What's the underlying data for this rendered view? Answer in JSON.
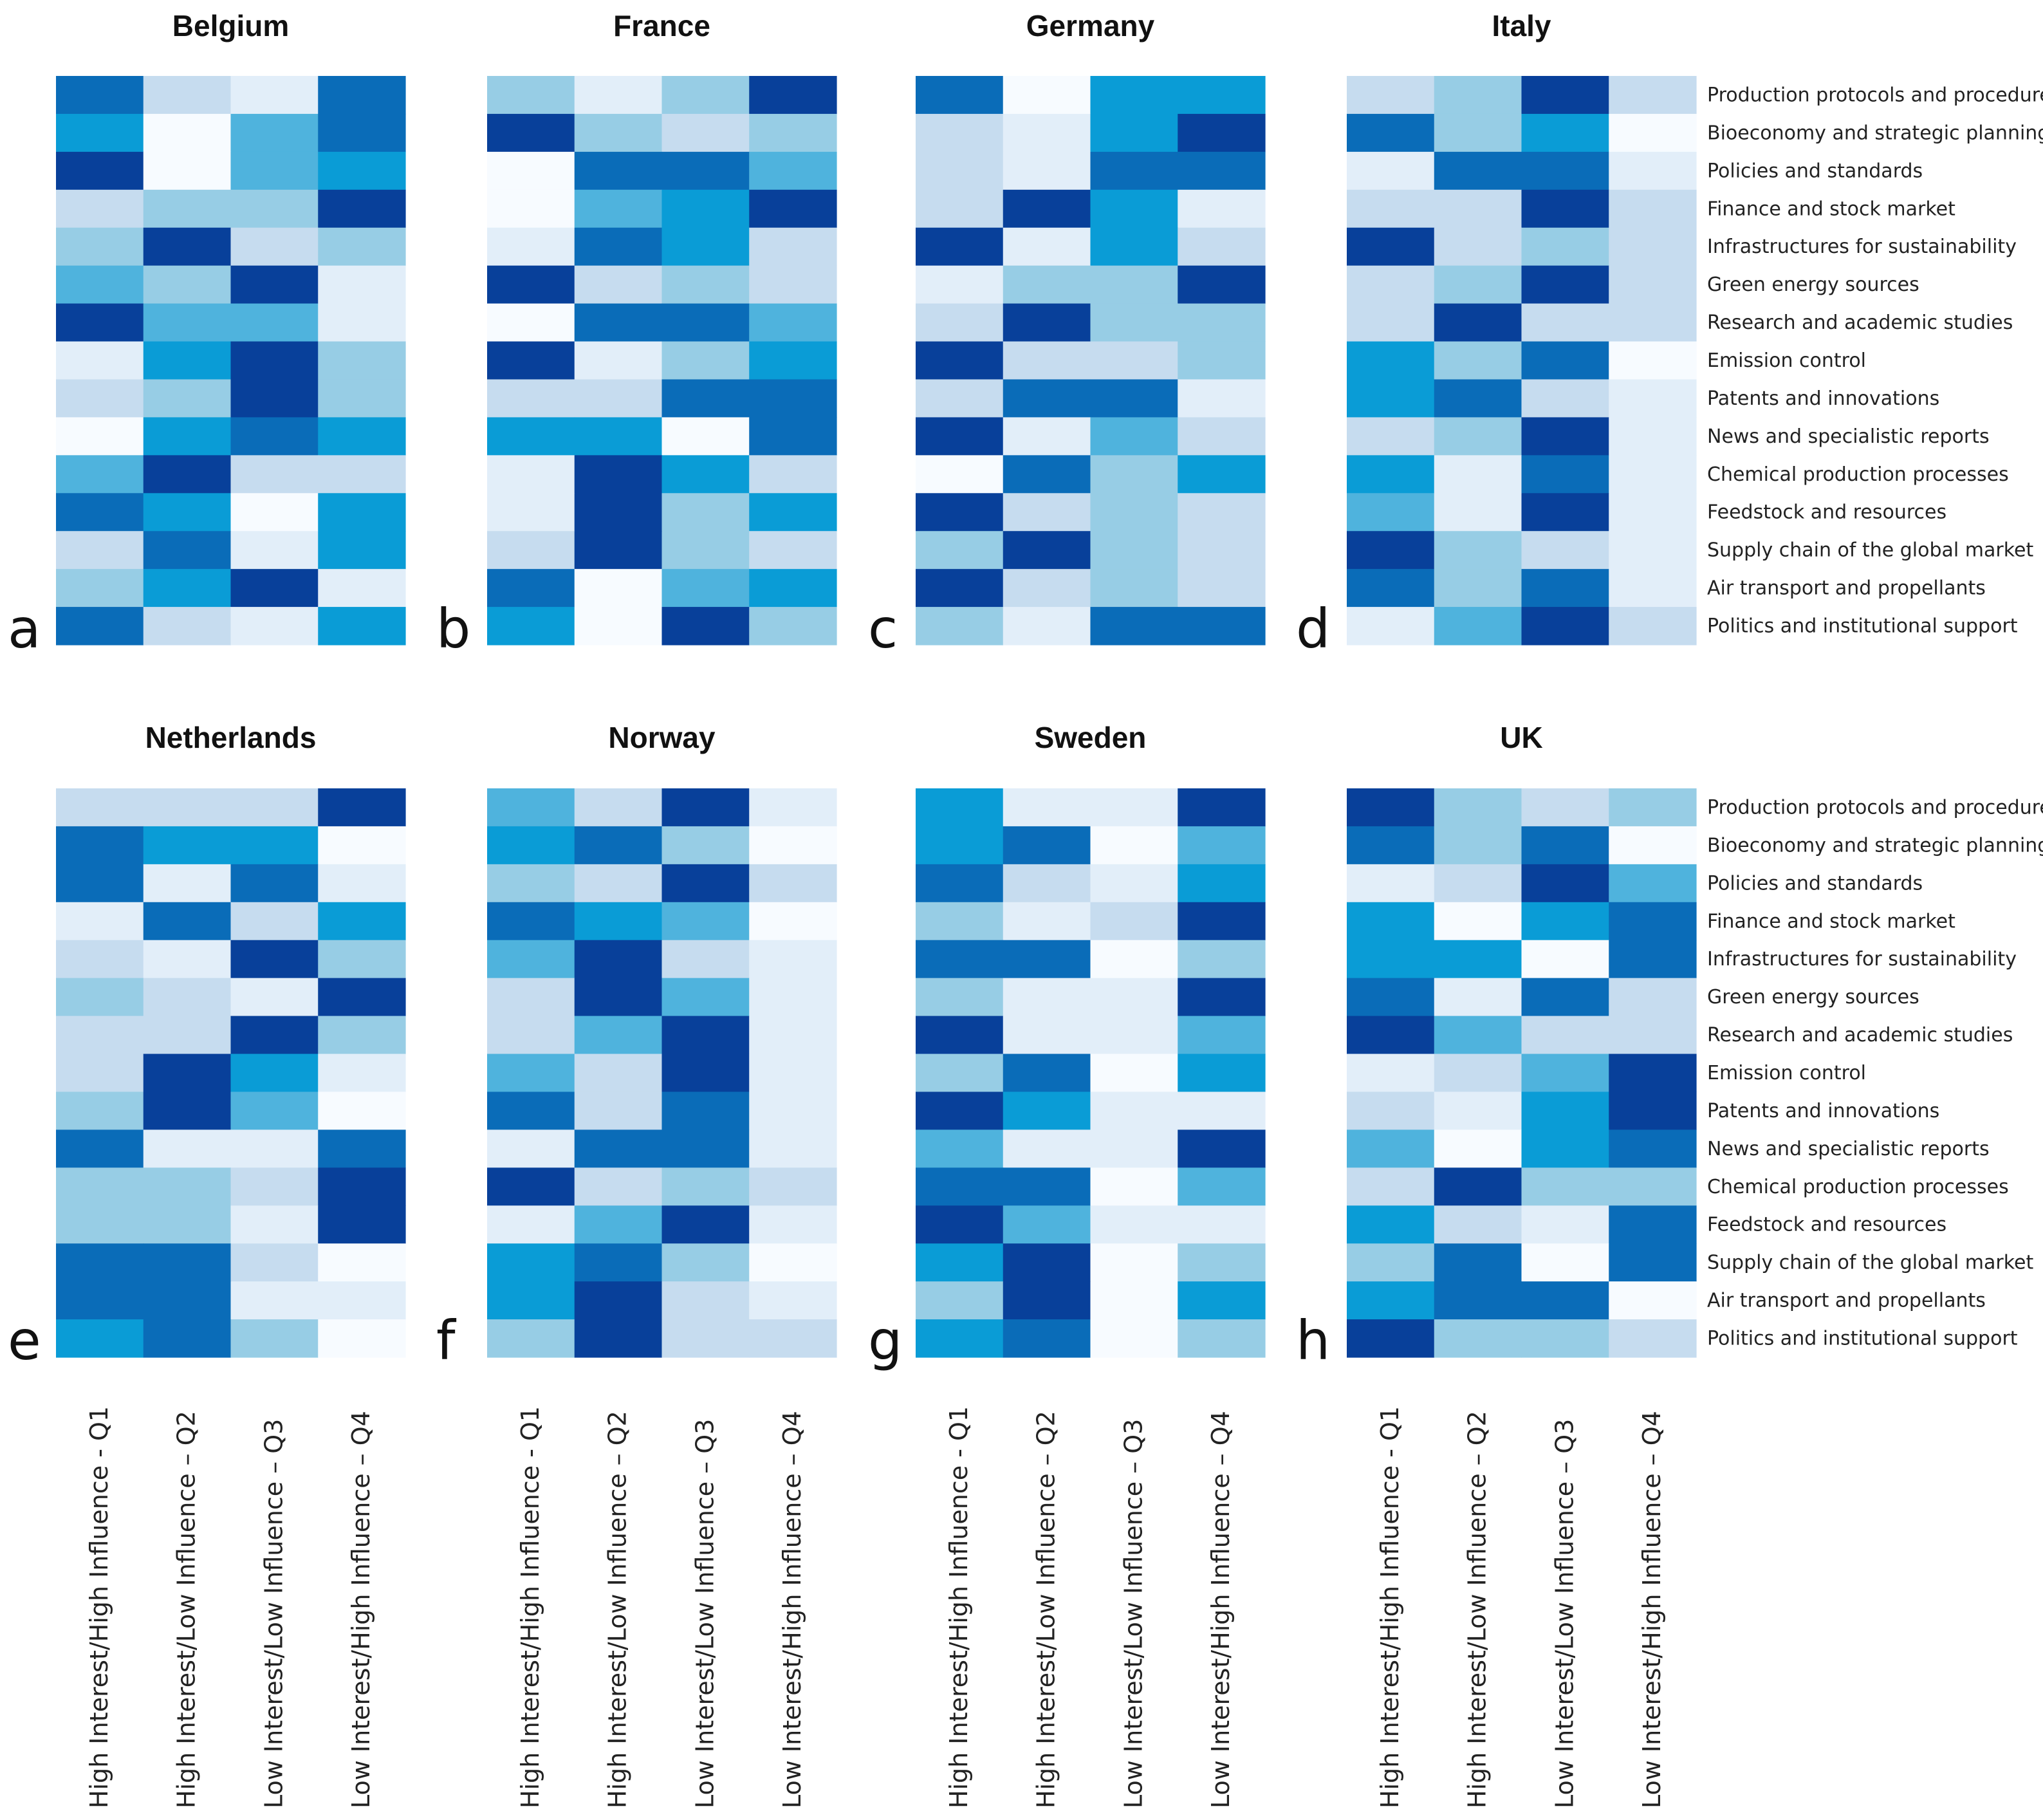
{
  "chart_data": {
    "type": "heatmap",
    "figure_note": "Eight heatmaps; cell value 0 (lightest) to 7 (darkest blue) approximates visual intensity",
    "value_range": [
      0,
      7
    ],
    "colors": [
      "#f7fbff",
      "#e2eef9",
      "#c6dcef",
      "#97cde5",
      "#4fb3dd",
      "#0a9cd6",
      "#0a6cb8",
      "#08409a"
    ],
    "columns": [
      "High Interest/High Influence - Q1",
      "High Interest/Low Influence – Q2",
      "Low Interest/Low Influence – Q3",
      "Low Interest/High Influence – Q4"
    ],
    "rows": [
      "Production protocols and procedures",
      "Bioeconomy and strategic planning",
      "Policies and standards",
      "Finance and stock market",
      "Infrastructures for sustainability",
      "Green energy sources",
      "Research and academic studies",
      "Emission control",
      "Patents and innovations",
      "News and specialistic reports",
      "Chemical production processes",
      "Feedstock and resources",
      "Supply chain of the global market",
      "Air transport and propellants",
      "Politics and institutional support"
    ],
    "panels": [
      {
        "letter": "a",
        "title": "Belgium",
        "values": [
          [
            6,
            2,
            1,
            6
          ],
          [
            5,
            0,
            4,
            6
          ],
          [
            7,
            0,
            4,
            5
          ],
          [
            2,
            3,
            3,
            7
          ],
          [
            3,
            7,
            2,
            3
          ],
          [
            4,
            3,
            7,
            1
          ],
          [
            7,
            4,
            4,
            1
          ],
          [
            1,
            5,
            7,
            3
          ],
          [
            2,
            3,
            7,
            3
          ],
          [
            0,
            5,
            6,
            5
          ],
          [
            4,
            7,
            2,
            2
          ],
          [
            6,
            5,
            0,
            5
          ],
          [
            2,
            6,
            1,
            5
          ],
          [
            3,
            5,
            7,
            1
          ],
          [
            6,
            2,
            1,
            5
          ]
        ]
      },
      {
        "letter": "b",
        "title": "France",
        "values": [
          [
            3,
            1,
            3,
            7
          ],
          [
            7,
            3,
            2,
            3
          ],
          [
            0,
            6,
            6,
            4
          ],
          [
            0,
            4,
            5,
            7
          ],
          [
            1,
            6,
            5,
            2
          ],
          [
            7,
            2,
            3,
            2
          ],
          [
            0,
            6,
            6,
            4
          ],
          [
            7,
            1,
            3,
            5
          ],
          [
            2,
            2,
            6,
            6
          ],
          [
            5,
            5,
            0,
            6
          ],
          [
            1,
            7,
            5,
            2
          ],
          [
            1,
            7,
            3,
            5
          ],
          [
            2,
            7,
            3,
            2
          ],
          [
            6,
            0,
            4,
            5
          ],
          [
            5,
            0,
            7,
            3
          ]
        ]
      },
      {
        "letter": "c",
        "title": "Germany",
        "values": [
          [
            6,
            0,
            5,
            5
          ],
          [
            2,
            1,
            5,
            7
          ],
          [
            2,
            1,
            6,
            6
          ],
          [
            2,
            7,
            5,
            1
          ],
          [
            7,
            1,
            5,
            2
          ],
          [
            1,
            3,
            3,
            7
          ],
          [
            2,
            7,
            3,
            3
          ],
          [
            7,
            2,
            2,
            3
          ],
          [
            2,
            6,
            6,
            1
          ],
          [
            7,
            1,
            4,
            2
          ],
          [
            0,
            6,
            3,
            5
          ],
          [
            7,
            2,
            3,
            2
          ],
          [
            3,
            7,
            3,
            2
          ],
          [
            7,
            2,
            3,
            2
          ],
          [
            3,
            1,
            6,
            6
          ]
        ]
      },
      {
        "letter": "d",
        "title": "Italy",
        "values": [
          [
            2,
            3,
            7,
            2
          ],
          [
            6,
            3,
            5,
            0
          ],
          [
            1,
            6,
            6,
            1
          ],
          [
            2,
            2,
            7,
            2
          ],
          [
            7,
            2,
            3,
            2
          ],
          [
            2,
            3,
            7,
            2
          ],
          [
            2,
            7,
            2,
            2
          ],
          [
            5,
            3,
            6,
            0
          ],
          [
            5,
            6,
            2,
            1
          ],
          [
            2,
            3,
            7,
            1
          ],
          [
            5,
            1,
            6,
            1
          ],
          [
            4,
            1,
            7,
            1
          ],
          [
            7,
            3,
            2,
            1
          ],
          [
            6,
            3,
            6,
            1
          ],
          [
            1,
            4,
            7,
            2
          ]
        ]
      },
      {
        "letter": "e",
        "title": "Netherlands",
        "values": [
          [
            2,
            2,
            2,
            7
          ],
          [
            6,
            5,
            5,
            0
          ],
          [
            6,
            1,
            6,
            1
          ],
          [
            1,
            6,
            2,
            5
          ],
          [
            2,
            1,
            7,
            3
          ],
          [
            3,
            2,
            1,
            7
          ],
          [
            2,
            2,
            7,
            3
          ],
          [
            2,
            7,
            5,
            1
          ],
          [
            3,
            7,
            4,
            0
          ],
          [
            6,
            1,
            1,
            6
          ],
          [
            3,
            3,
            2,
            7
          ],
          [
            3,
            3,
            1,
            7
          ],
          [
            6,
            6,
            2,
            0
          ],
          [
            6,
            6,
            1,
            1
          ],
          [
            5,
            6,
            3,
            0
          ]
        ]
      },
      {
        "letter": "f",
        "title": "Norway",
        "values": [
          [
            4,
            2,
            7,
            1
          ],
          [
            5,
            6,
            3,
            0
          ],
          [
            3,
            2,
            7,
            2
          ],
          [
            6,
            5,
            4,
            0
          ],
          [
            4,
            7,
            2,
            1
          ],
          [
            2,
            7,
            4,
            1
          ],
          [
            2,
            4,
            7,
            1
          ],
          [
            4,
            2,
            7,
            1
          ],
          [
            6,
            2,
            6,
            1
          ],
          [
            1,
            6,
            6,
            1
          ],
          [
            7,
            2,
            3,
            2
          ],
          [
            1,
            4,
            7,
            1
          ],
          [
            5,
            6,
            3,
            0
          ],
          [
            5,
            7,
            2,
            1
          ],
          [
            3,
            7,
            2,
            2
          ]
        ]
      },
      {
        "letter": "g",
        "title": "Sweden",
        "values": [
          [
            5,
            1,
            1,
            7
          ],
          [
            5,
            6,
            0,
            4
          ],
          [
            6,
            2,
            1,
            5
          ],
          [
            3,
            1,
            2,
            7
          ],
          [
            6,
            6,
            0,
            3
          ],
          [
            3,
            1,
            1,
            7
          ],
          [
            7,
            1,
            1,
            4
          ],
          [
            3,
            6,
            0,
            5
          ],
          [
            7,
            5,
            1,
            1
          ],
          [
            4,
            1,
            1,
            7
          ],
          [
            6,
            6,
            0,
            4
          ],
          [
            7,
            4,
            1,
            1
          ],
          [
            5,
            7,
            0,
            3
          ],
          [
            3,
            7,
            0,
            5
          ],
          [
            5,
            6,
            0,
            3
          ]
        ]
      },
      {
        "letter": "h",
        "title": "UK",
        "values": [
          [
            7,
            3,
            2,
            3
          ],
          [
            6,
            3,
            6,
            0
          ],
          [
            1,
            2,
            7,
            4
          ],
          [
            5,
            0,
            5,
            6
          ],
          [
            5,
            5,
            0,
            6
          ],
          [
            6,
            1,
            6,
            2
          ],
          [
            7,
            4,
            2,
            2
          ],
          [
            1,
            2,
            4,
            7
          ],
          [
            2,
            1,
            5,
            7
          ],
          [
            4,
            0,
            5,
            6
          ],
          [
            2,
            7,
            3,
            3
          ],
          [
            5,
            2,
            1,
            6
          ],
          [
            3,
            6,
            0,
            6
          ],
          [
            5,
            6,
            6,
            0
          ],
          [
            7,
            3,
            3,
            2
          ]
        ]
      }
    ]
  }
}
